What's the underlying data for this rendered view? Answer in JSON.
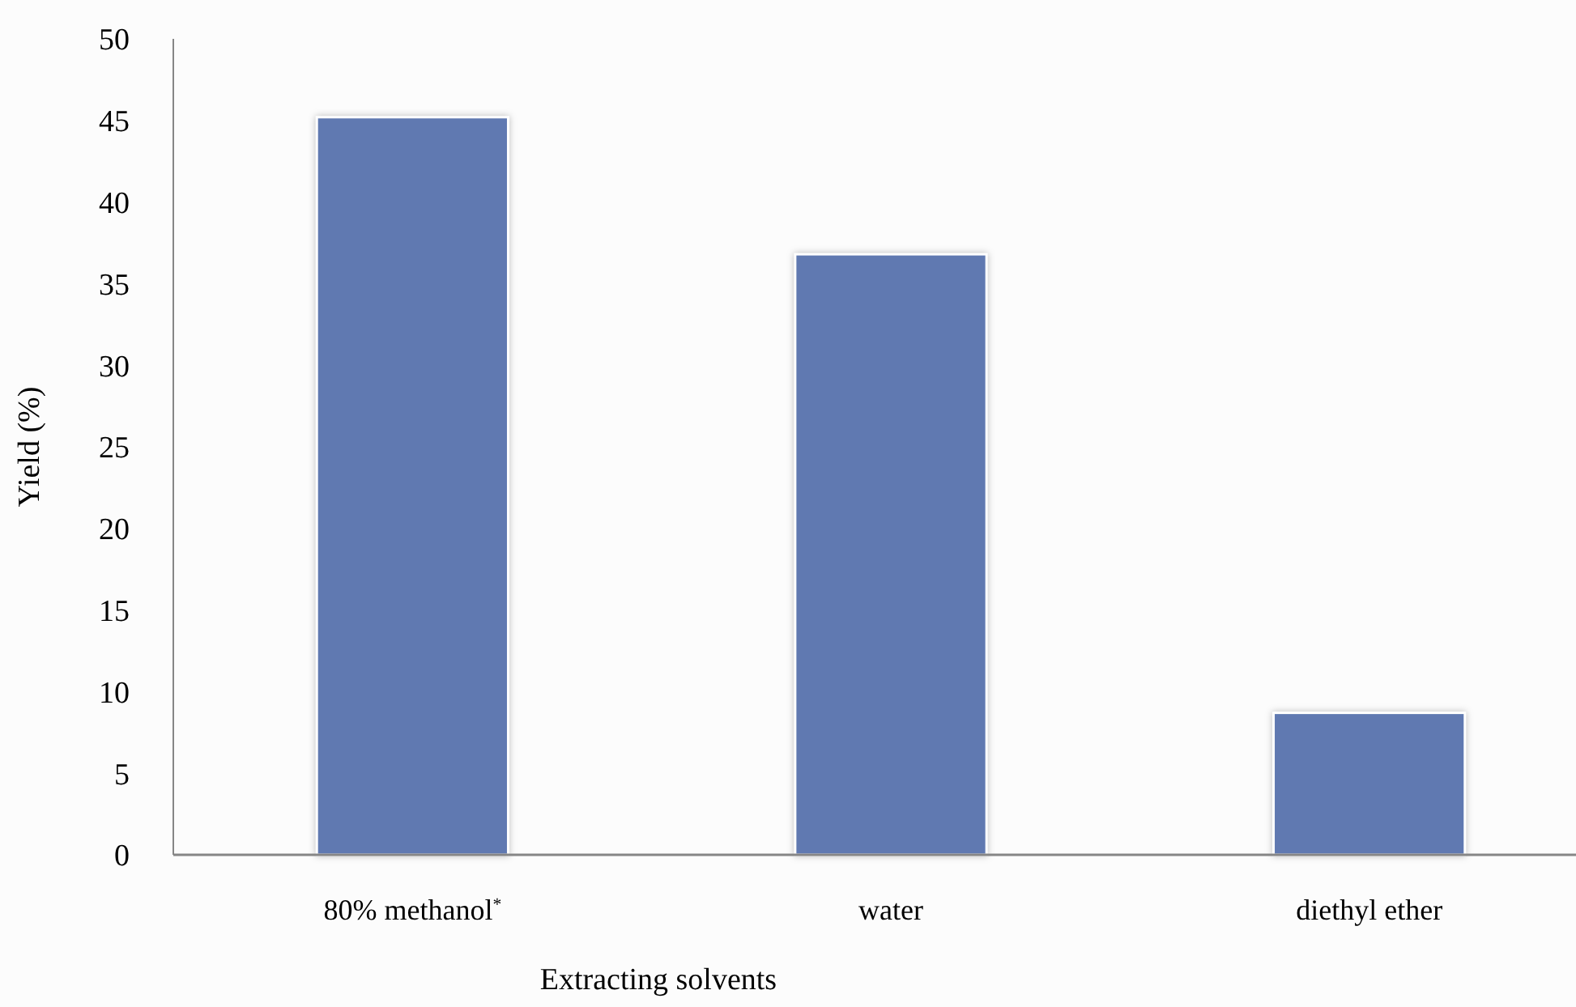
{
  "chart_data": {
    "type": "bar",
    "xlabel": "Extracting solvents",
    "ylabel": "Yield (%)",
    "categories": [
      "80% methanol$^{*}$",
      "water",
      "diethyl ether"
    ],
    "values": [
      45.2,
      36.8,
      8.7
    ],
    "color": "#6079b1",
    "ylim": [
      0,
      50
    ],
    "yticks": [
      0,
      5,
      10,
      15,
      20,
      25,
      30,
      35,
      40,
      45,
      50
    ],
    "grid": false
  }
}
